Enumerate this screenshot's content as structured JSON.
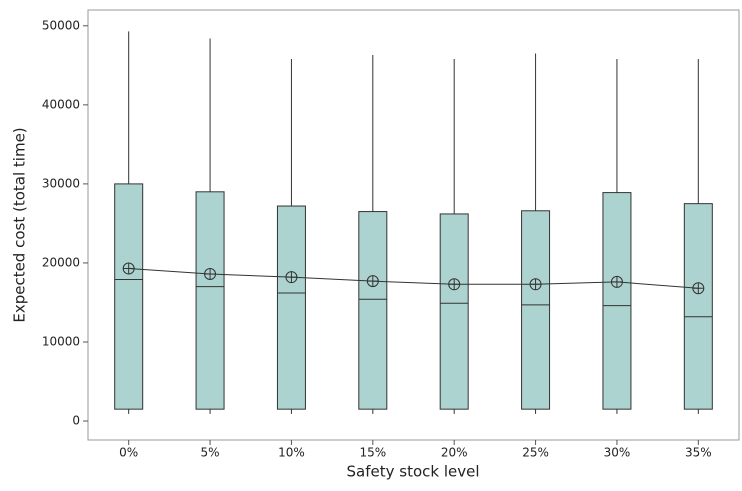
{
  "chart_data": {
    "type": "box",
    "x_label": "Safety stock level",
    "y_label": "Expected cost (total time)",
    "categories": [
      "0%",
      "5%",
      "10%",
      "15%",
      "20%",
      "25%",
      "30%",
      "35%"
    ],
    "min": [
      900,
      900,
      900,
      900,
      900,
      900,
      900,
      900
    ],
    "q1": [
      1500,
      1500,
      1500,
      1500,
      1500,
      1500,
      1500,
      1500
    ],
    "median": [
      17900,
      17000,
      16200,
      15400,
      14900,
      14700,
      14600,
      13200
    ],
    "q3": [
      30000,
      29000,
      27200,
      26500,
      26200,
      26600,
      28900,
      27500
    ],
    "max": [
      49300,
      48400,
      45800,
      46300,
      45800,
      46500,
      45800,
      45800
    ],
    "mean": [
      19300,
      18600,
      18200,
      17700,
      17300,
      17300,
      17600,
      16800
    ],
    "color": "#acd3cf",
    "ylim": [
      -2400,
      52000
    ],
    "yticks": [
      0,
      10000,
      20000,
      30000,
      40000,
      50000
    ]
  }
}
